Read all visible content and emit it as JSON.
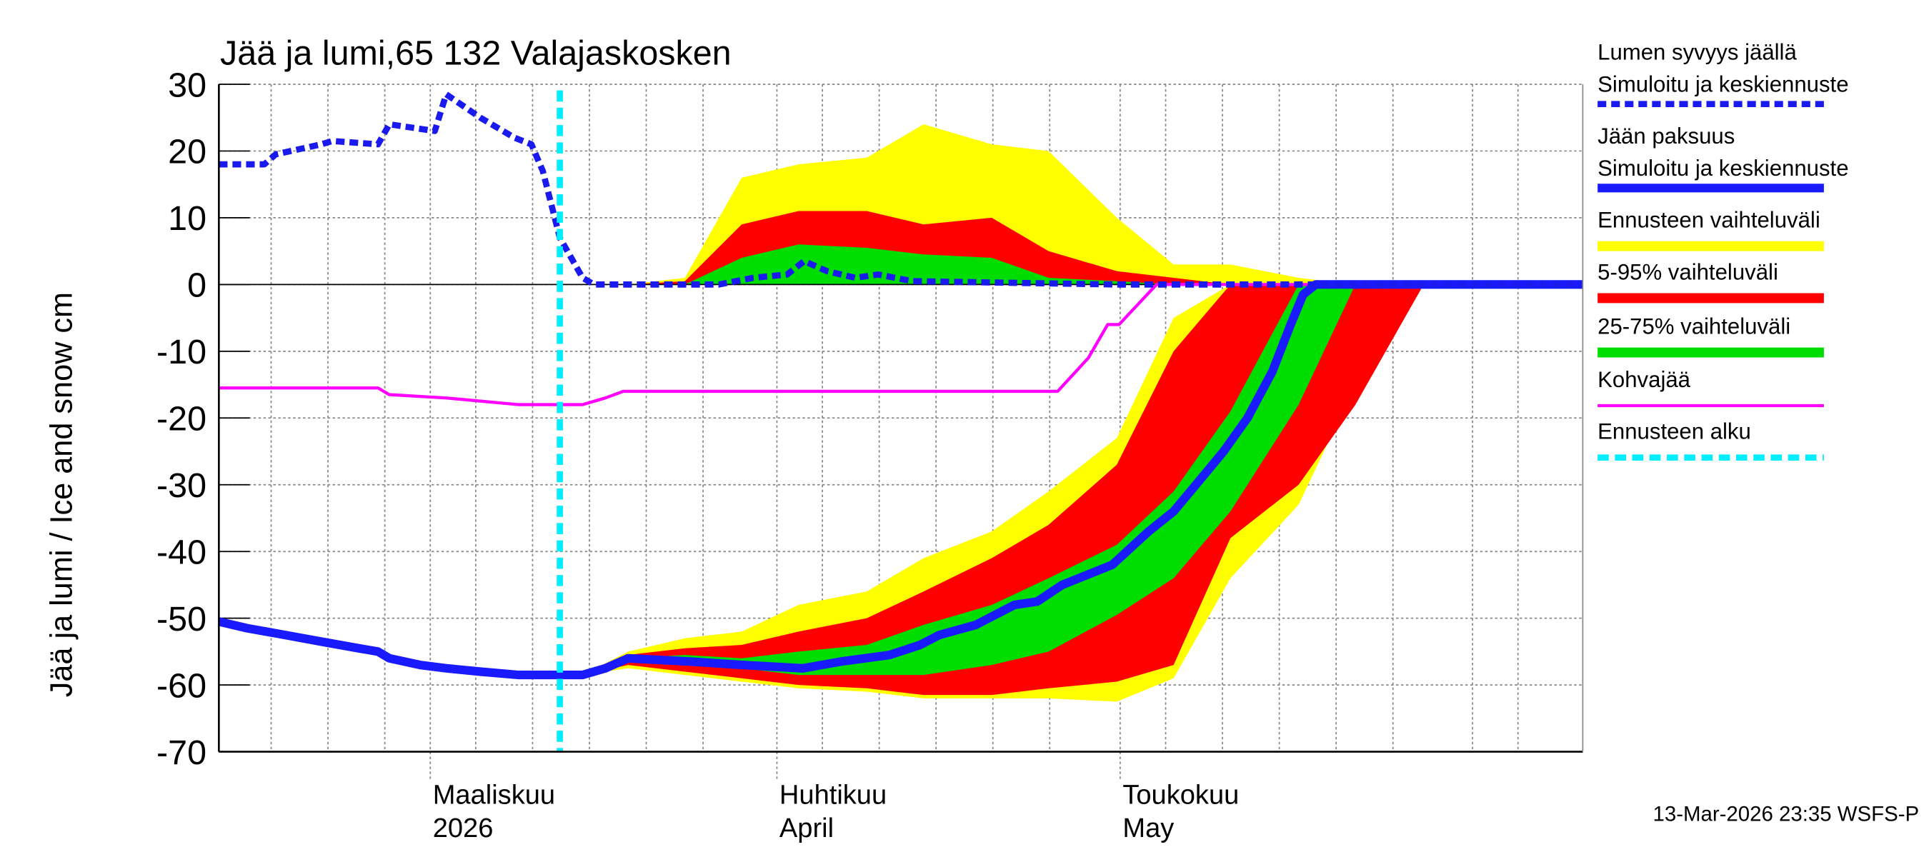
{
  "chart_data": {
    "type": "ice-snow",
    "title": "Jää ja lumi,65 132 Valajaskosken",
    "y_label": "Jää ja lumi / Ice and snow    cm",
    "footer": "13-Mar-2026 23:35 WSFS-P",
    "xlim": [
      0,
      120
    ],
    "xticks": [
      {
        "value": 18.6,
        "label": "Maaliskuu",
        "sublabel": "2026"
      },
      {
        "value": 49.1,
        "label": "Huhtikuu",
        "sublabel": "April"
      },
      {
        "value": 79.3,
        "label": "Toukokuu",
        "sublabel": "May"
      }
    ],
    "xgrid": [
      4.6,
      9.6,
      14.6,
      22.6,
      27.6,
      32.6,
      37.6,
      42.6,
      53.1,
      58.1,
      63.1,
      68.1,
      73.1,
      83.3,
      88.3,
      93.3,
      98.3,
      103.3,
      110.3,
      114.3
    ],
    "ylim": [
      -70,
      30
    ],
    "yticks": [
      30,
      20,
      10,
      0,
      -10,
      -20,
      -30,
      -40,
      -50,
      -60,
      -70
    ],
    "grid": true,
    "band_x": [
      32,
      36,
      41,
      46,
      51,
      57,
      62,
      68,
      73,
      79,
      84,
      89,
      95,
      100,
      106
    ],
    "bands": [
      {
        "name": "Ennusteen vaihteluväli",
        "color": "#ffff00",
        "ice_upper": [
          -58.5,
          -55,
          -53,
          -52,
          -48,
          -46,
          -41,
          -37,
          -31,
          -23,
          -5,
          0,
          0,
          0,
          0
        ],
        "ice_lower": [
          -58.5,
          -57.5,
          -58.5,
          -59.5,
          -60.5,
          -61,
          -62,
          -62,
          -62,
          -62.5,
          -59,
          -44,
          -33,
          -15,
          0
        ],
        "snow_upper": [
          0,
          0,
          1,
          16,
          18,
          19,
          24,
          21,
          20,
          10,
          3,
          3,
          1,
          0,
          0
        ],
        "snow_lower": [
          0,
          0,
          0,
          0,
          0,
          0,
          0,
          0,
          0,
          0,
          0,
          0,
          0,
          0,
          0
        ]
      },
      {
        "name": "5-95% vaihteluväli",
        "color": "#ff0000",
        "ice_upper": [
          -58.5,
          -55.5,
          -54.5,
          -54,
          -52,
          -50,
          -46,
          -41,
          -36,
          -27,
          -10,
          0,
          0,
          0,
          0
        ],
        "ice_lower": [
          -58.5,
          -57,
          -58,
          -59,
          -60,
          -60.5,
          -61.5,
          -61.5,
          -60.5,
          -59.5,
          -57,
          -38,
          -30,
          -18,
          0
        ],
        "snow_upper": [
          0,
          0,
          0.5,
          9,
          11,
          11,
          9,
          10,
          5,
          2,
          1,
          0,
          0,
          0,
          0
        ],
        "snow_lower": [
          0,
          0,
          0,
          0,
          0,
          0,
          0,
          0,
          0,
          0,
          0,
          0,
          0,
          0,
          0
        ]
      },
      {
        "name": "25-75% vaihteluväli",
        "color": "#00dd00",
        "ice_upper": [
          -58.5,
          -56,
          -55.5,
          -56,
          -55,
          -54,
          -51,
          -48,
          -44,
          -39,
          -31,
          -19,
          0,
          0,
          0
        ],
        "ice_lower": [
          -58.5,
          -56.5,
          -57,
          -57.5,
          -58.5,
          -58.5,
          -58.5,
          -57,
          -55,
          -49.5,
          -44,
          -34,
          -18,
          0,
          0
        ],
        "snow_upper": [
          0,
          0,
          0,
          4,
          6,
          5.5,
          4.5,
          4,
          1,
          0.5,
          0,
          0,
          0,
          0,
          0
        ],
        "snow_lower": [
          0,
          0,
          0,
          0,
          0,
          0,
          0,
          0,
          0,
          0,
          0,
          0,
          0,
          0,
          0
        ]
      }
    ],
    "series": [
      {
        "name": "Kohvajää",
        "color": "#ff00ff",
        "width": 2.5,
        "dash": false,
        "x": [
          0,
          14,
          15,
          20,
          26.4,
          32,
          34,
          35.6,
          73.8,
          76.5,
          78.2,
          79.2,
          81.4,
          82.5,
          120
        ],
        "values": [
          -15.5,
          -15.5,
          -16.5,
          -17,
          -18,
          -18,
          -17,
          -16,
          -16,
          -11,
          -6,
          -6,
          -2,
          0,
          0
        ]
      },
      {
        "name": "Jään paksuus",
        "subname": "Simuloitu ja keskiennuste",
        "color": "#1a1aff",
        "width": 7,
        "dash": false,
        "x": [
          0,
          2.5,
          5.8,
          9,
          12.3,
          14,
          15,
          17.7,
          20,
          23,
          26.4,
          32,
          34,
          36,
          41.6,
          46,
          51.4,
          54.7,
          59,
          61.7,
          63.4,
          66.6,
          70,
          72,
          74.2,
          78.6,
          81.8,
          84,
          86.7,
          88.4,
          90.5,
          92.7,
          94.3,
          95.4,
          96.5,
          120
        ],
        "values": [
          -50.5,
          -51.5,
          -52.5,
          -53.5,
          -54.5,
          -55,
          -56,
          -57,
          -57.5,
          -58,
          -58.5,
          -58.5,
          -57.5,
          -56,
          -56.5,
          -57,
          -57.5,
          -56.5,
          -55.5,
          -54,
          -52.5,
          -51,
          -48,
          -47.5,
          -45,
          -42,
          -37,
          -34,
          -28.5,
          -25,
          -20,
          -13,
          -6,
          -1.5,
          0,
          0
        ]
      },
      {
        "name": "Lumen syvyys jäällä",
        "subname": "Simuloitu ja keskiennuste",
        "color": "#1a1aee",
        "width": 5,
        "dash": true,
        "x": [
          0,
          4,
          5,
          9,
          10,
          14,
          15,
          19,
          20,
          23,
          26,
          27.5,
          28.5,
          30,
          32,
          33,
          44,
          47,
          50,
          51.5,
          53.5,
          56,
          58,
          61,
          68,
          79,
          120
        ],
        "values": [
          18,
          18,
          19.5,
          21,
          21.5,
          21,
          24,
          23,
          28.5,
          25,
          22,
          21,
          17,
          7,
          1,
          0,
          0,
          1,
          1.5,
          3.5,
          2,
          1,
          1.5,
          0.5,
          0.3,
          0,
          0
        ]
      }
    ],
    "forecast_start": {
      "name": "Ennusteen alku",
      "x": 30,
      "color": "#00eeff"
    }
  }
}
